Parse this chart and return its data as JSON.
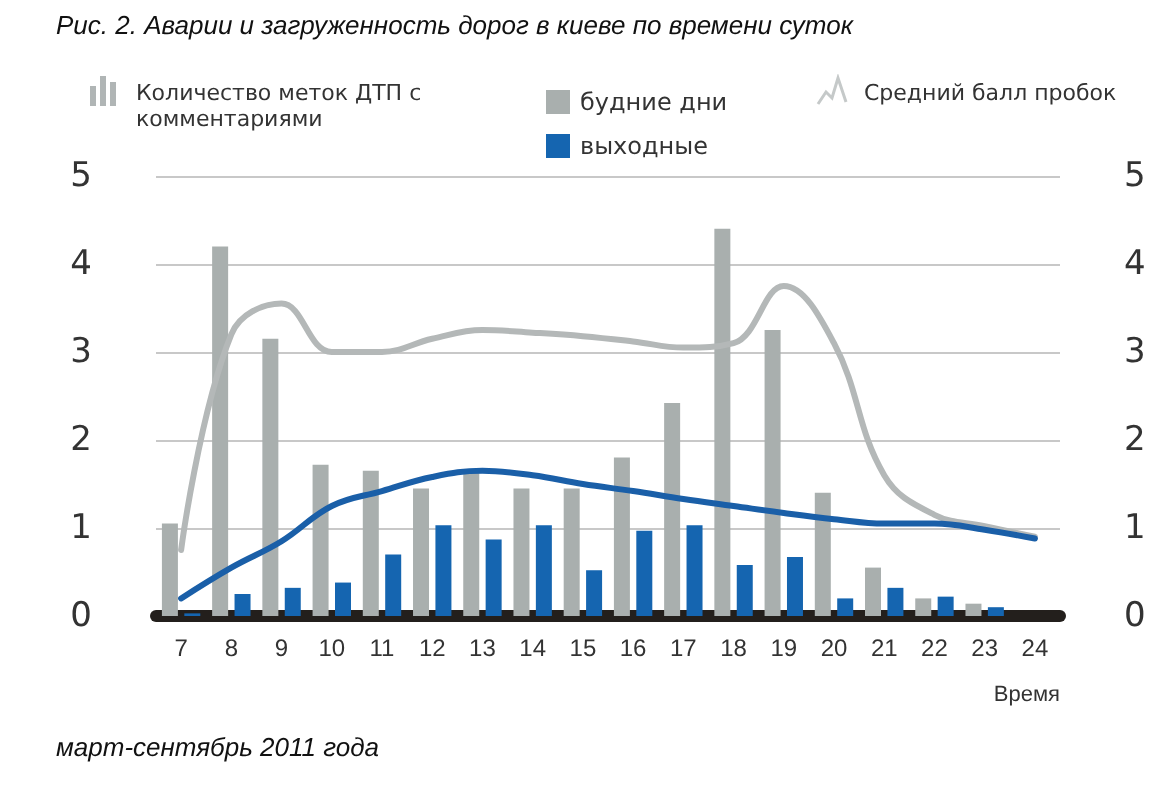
{
  "chart_data": {
    "type": "bar",
    "title": "Рис. 2. Аварии и загруженность дорог в киеве по времени суток",
    "xlabel": "Время",
    "categories": [
      "7",
      "8",
      "9",
      "10",
      "11",
      "12",
      "13",
      "14",
      "15",
      "16",
      "17",
      "18",
      "19",
      "20",
      "21",
      "22",
      "23",
      "24"
    ],
    "series": [
      {
        "name": "будние дни",
        "color": "#a9afae",
        "values": [
          1.05,
          4.2,
          3.15,
          1.72,
          1.65,
          1.45,
          1.65,
          1.45,
          1.45,
          1.8,
          2.42,
          4.4,
          3.25,
          1.4,
          0.55,
          0.2,
          0.14,
          null
        ]
      },
      {
        "name": "выходные",
        "color": "#1565b0",
        "values": [
          0.03,
          0.25,
          0.32,
          0.38,
          0.7,
          1.03,
          0.87,
          1.03,
          0.52,
          0.97,
          1.03,
          0.58,
          0.67,
          0.2,
          0.32,
          0.22,
          0.1,
          null
        ]
      },
      {
        "type": "line",
        "color": "#b4b8b8",
        "values": [
          0.75,
          3.2,
          3.55,
          3.0,
          3.0,
          3.15,
          3.25,
          3.22,
          3.18,
          3.12,
          3.05,
          3.1,
          3.75,
          3.1,
          1.6,
          1.15,
          1.02,
          0.9
        ]
      },
      {
        "type": "line",
        "color": "#1a5fa8",
        "values": [
          0.2,
          0.55,
          0.85,
          1.25,
          1.42,
          1.58,
          1.65,
          1.6,
          1.5,
          1.42,
          1.33,
          1.25,
          1.17,
          1.1,
          1.05,
          1.05,
          0.98,
          0.88
        ]
      }
    ],
    "ylim": [
      0,
      5
    ],
    "yticks": [
      0,
      1,
      2,
      3,
      4,
      5
    ],
    "y2lim": [
      0,
      5
    ],
    "y2ticks": [
      0,
      1,
      2,
      3,
      4,
      5
    ],
    "grid": "y",
    "legend": "top",
    "marker": "none",
    "annotations": [
      "Количество меток ДТП с комментариями",
      "Средний балл пробок",
      "март-сентябрь 2011 года"
    ]
  }
}
